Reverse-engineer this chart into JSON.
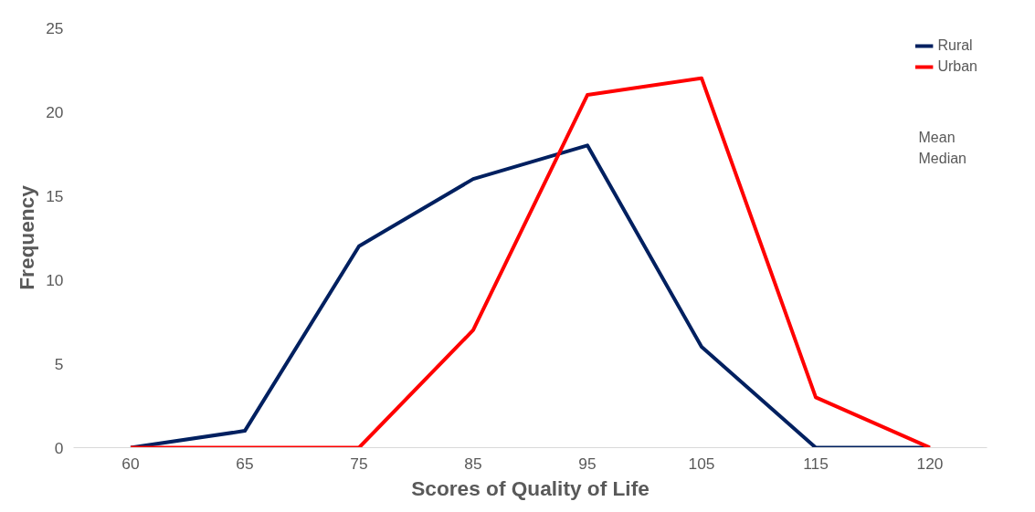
{
  "chart_data": {
    "type": "line",
    "xlabel": "Scores of Quality of Life",
    "ylabel": "Frequency",
    "categories": [
      "60",
      "65",
      "75",
      "85",
      "95",
      "105",
      "115",
      "120"
    ],
    "series": [
      {
        "name": "Rural",
        "color": "#002060",
        "values": [
          0,
          1,
          12,
          16,
          18,
          6,
          0,
          0
        ]
      },
      {
        "name": "Urban",
        "color": "#ff0000",
        "values": [
          0,
          0,
          0,
          7,
          21,
          22,
          3,
          0
        ]
      }
    ],
    "ylim": [
      0,
      25
    ],
    "yticks": [
      0,
      5,
      10,
      15,
      20,
      25
    ],
    "grid": false,
    "legend": "top right",
    "marker": "none",
    "line_style": "solid",
    "annotations": [
      "Mean",
      "Median"
    ]
  }
}
